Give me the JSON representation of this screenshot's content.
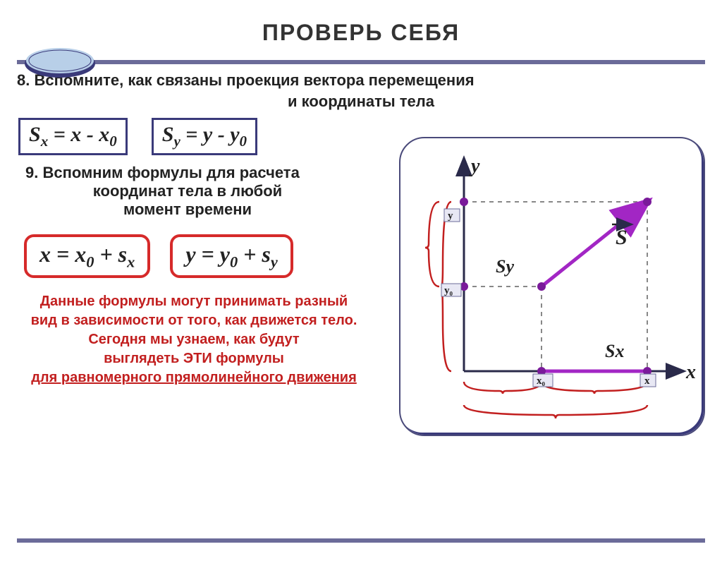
{
  "title": "ПРОВЕРЬ  СЕБЯ",
  "q8_line1": "8.   Вспомните, как связаны проекция вектора перемещения",
  "q8_line2": "и координаты тела",
  "formula_sx": "S<sub class='sub'>x</sub> = x - x<sub class='sub'>0</sub>",
  "formula_sy": "S<sub class='sub'>y</sub> = y - y<sub class='sub'>0</sub>",
  "q9_line1": "9.   Вспомним формулы для расчета",
  "q9_line2": "координат  тела в любой",
  "q9_line3": "момент времени",
  "formula_x": "x = x<sub class='sub'>0</sub> + s<sub class='sub'>x</sub>",
  "formula_y": "y = y<sub class='sub'>0</sub> + s<sub class='sub'>y</sub>",
  "red_l1": "Данные формулы могут принимать разный",
  "red_l2": "вид в зависимости от  того,  как движется тело.",
  "red_l3": "Сегодня мы  узнаем, как будут",
  "red_l4": "выглядеть ЭТИ формулы",
  "red_l5": "для равномерного прямолинейного движения",
  "diagram": {
    "frame_color": "#4a4a7a",
    "axis_color": "#2a2a4a",
    "dash_color": "#888888",
    "bracket_color": "#c21f1f",
    "vector_color": "#a226c4",
    "labels": {
      "y_axis": "y",
      "x_axis": "x",
      "y": "y",
      "y0": "y₀",
      "x0": "x₀",
      "x": "x",
      "S": "S",
      "Sy": "Sy",
      "Sx": "Sx"
    },
    "colors": {
      "point": "#7a1a9a",
      "x_proj_line": "#a226c4",
      "label_bg": "#e8e8f4",
      "label_border": "#6b6b99"
    }
  },
  "disc": {
    "outer": "#3a3a7a",
    "inner": "#b8cfe8"
  }
}
